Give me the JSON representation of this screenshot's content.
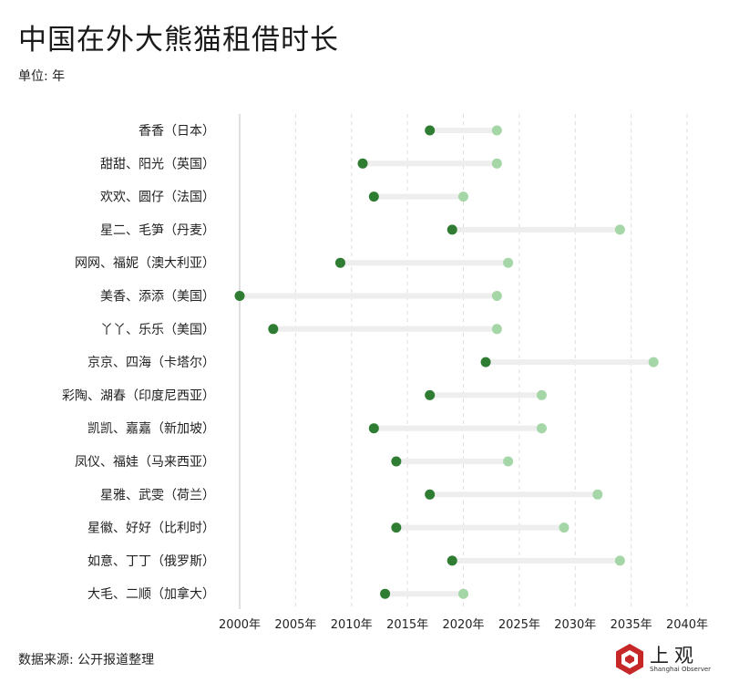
{
  "title": "中国在外大熊猫租借时长",
  "unit_label": "单位: 年",
  "source_label": "数据来源: 公开报道整理",
  "logo": {
    "name": "上观",
    "subtitle": "Shanghai Observer"
  },
  "colors": {
    "start": "#2e7d32",
    "end": "#a5d6a7",
    "bar": "#eeeeee",
    "axis": "#cccccc",
    "grid": "#dddddd",
    "logo_red": "#c62828"
  },
  "chart_data": {
    "type": "dumbbell",
    "title": "中国在外大熊猫租借时长",
    "xlim": [
      2000,
      2040
    ],
    "xticks": [
      2000,
      2005,
      2010,
      2015,
      2020,
      2025,
      2030,
      2035,
      2040
    ],
    "xtick_labels": [
      "2000年",
      "2005年",
      "2010年",
      "2015年",
      "2020年",
      "2025年",
      "2030年",
      "2035年",
      "2040年"
    ],
    "grid": "vertical dashed",
    "categories": [
      "香香（日本）",
      "甜甜、阳光（英国）",
      "欢欢、圆仔（法国）",
      "星二、毛笋（丹麦）",
      "网网、福妮（澳大利亚）",
      "美香、添添（美国）",
      "丫丫、乐乐（美国）",
      "京京、四海（卡塔尔）",
      "彩陶、湖春（印度尼西亚）",
      "凯凯、嘉嘉（新加坡）",
      "凤仪、福娃（马来西亚）",
      "星雅、武雯（荷兰）",
      "星徽、好好（比利时）",
      "如意、丁丁（俄罗斯）",
      "大毛、二顺（加拿大）"
    ],
    "start": [
      2017,
      2011,
      2012,
      2019,
      2009,
      2000,
      2003,
      2022,
      2017,
      2012,
      2014,
      2017,
      2014,
      2019,
      2013
    ],
    "end": [
      2023,
      2023,
      2020,
      2034,
      2024,
      2023,
      2023,
      2037,
      2027,
      2027,
      2024,
      2032,
      2029,
      2034,
      2020
    ]
  }
}
